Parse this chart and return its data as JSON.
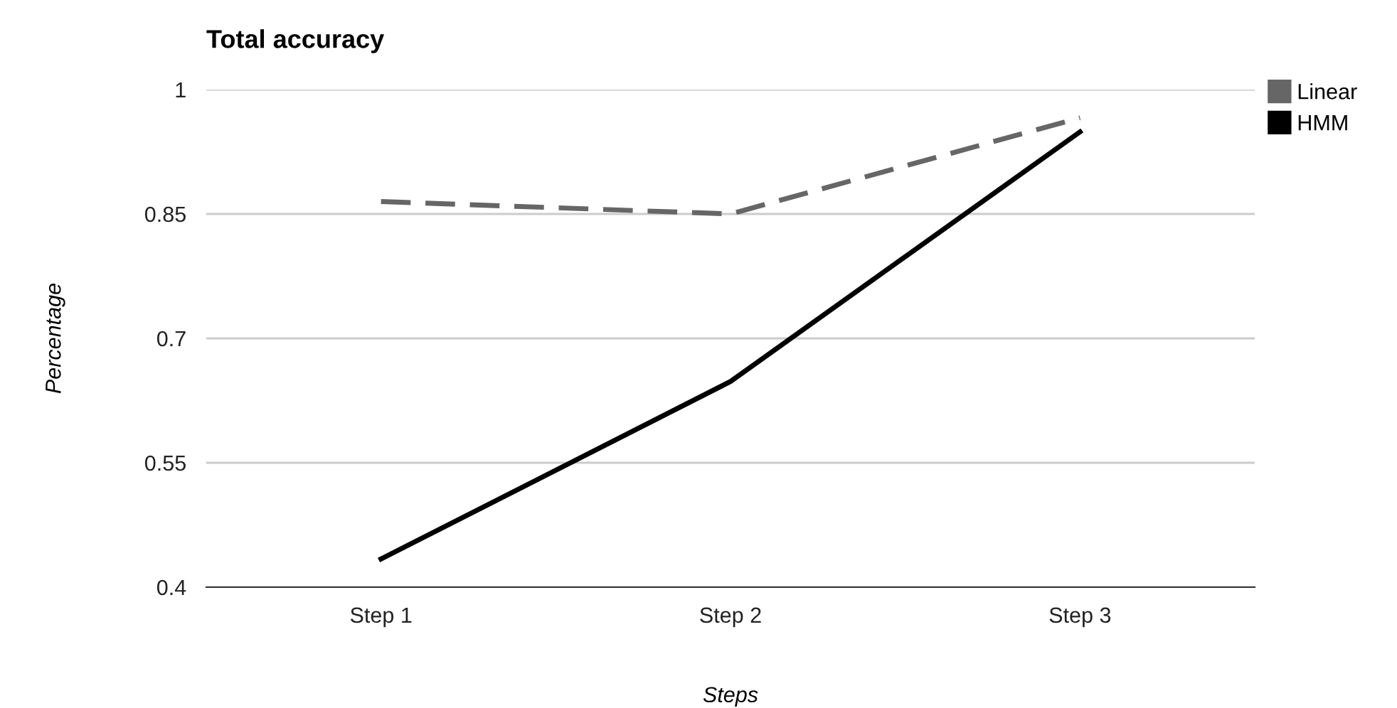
{
  "chart_data": {
    "type": "line",
    "title": "Total accuracy",
    "xlabel": "Steps",
    "ylabel": "Percentage",
    "categories": [
      "Step 1",
      "Step 2",
      "Step 3"
    ],
    "series": [
      {
        "name": "Linear",
        "color": "#666666",
        "line_style": "dashed",
        "values": [
          0.865,
          0.85,
          0.966
        ]
      },
      {
        "name": "HMM",
        "color": "#000000",
        "line_style": "solid",
        "values": [
          0.434,
          0.648,
          0.949
        ]
      }
    ],
    "ylim": [
      0.4,
      1
    ],
    "yticks": [
      0.4,
      0.55,
      0.7,
      0.85,
      1
    ],
    "grid": "y",
    "legend": "top right"
  }
}
